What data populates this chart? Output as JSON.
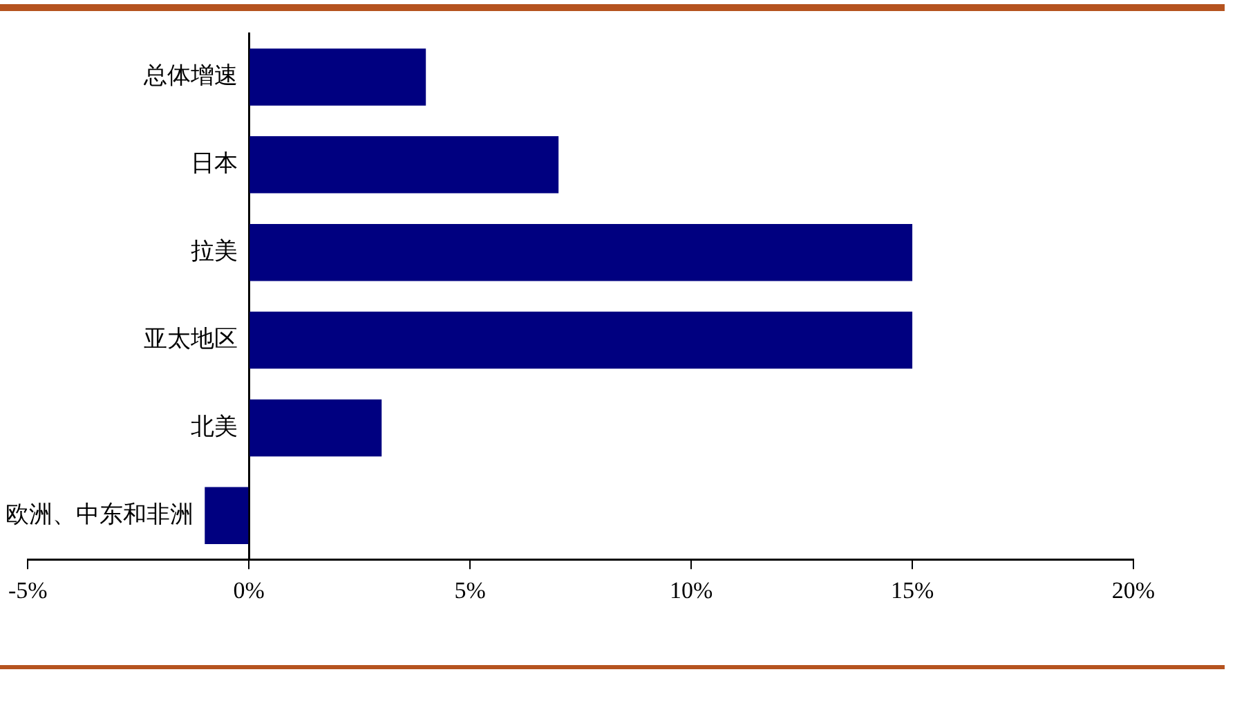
{
  "chart_data": {
    "type": "bar",
    "orientation": "horizontal",
    "categories": [
      "总体增速",
      "日本",
      "拉美",
      "亚太地区",
      "北美",
      "欧洲、中东和非洲"
    ],
    "values": [
      4,
      7,
      15,
      15,
      3,
      -1
    ],
    "color": "#000080",
    "xlim": [
      -5,
      20
    ],
    "xticks": [
      {
        "value": -5,
        "label": "-5%"
      },
      {
        "value": 0,
        "label": "0%"
      },
      {
        "value": 5,
        "label": "5%"
      },
      {
        "value": 10,
        "label": "10%"
      },
      {
        "value": 15,
        "label": "15%"
      },
      {
        "value": 20,
        "label": "20%"
      }
    ]
  }
}
